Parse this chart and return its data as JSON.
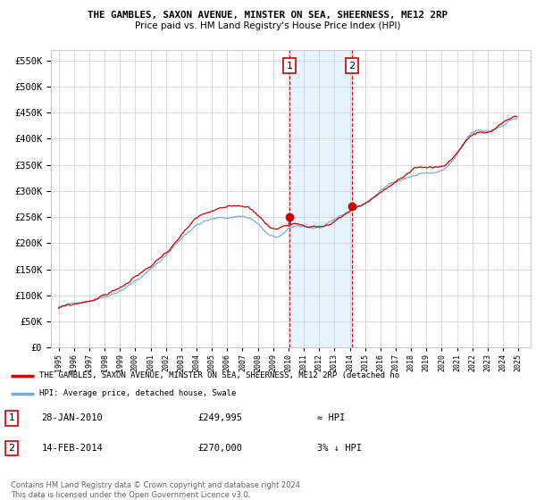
{
  "title": "THE GAMBLES, SAXON AVENUE, MINSTER ON SEA, SHEERNESS, ME12 2RP",
  "subtitle": "Price paid vs. HM Land Registry's House Price Index (HPI)",
  "legend_line1": "THE GAMBLES, SAXON AVENUE, MINSTER ON SEA, SHEERNESS, ME12 2RP (detached ho",
  "legend_line2": "HPI: Average price, detached house, Swale",
  "annotation1": "28-JAN-2010",
  "annotation1_price": "£249,995",
  "annotation1_hpi": "≈ HPI",
  "annotation2": "14-FEB-2014",
  "annotation2_price": "£270,000",
  "annotation2_hpi": "3% ↓ HPI",
  "footnote": "Contains HM Land Registry data © Crown copyright and database right 2024.\nThis data is licensed under the Open Government Licence v3.0.",
  "red_color": "#cc0000",
  "blue_color": "#7aadd4",
  "shade_color": "#ddeeff",
  "vline1_date": 2010.077,
  "vline2_date": 2014.12,
  "ylim_min": 0,
  "ylim_max": 570000,
  "xlim_min": 1994.5,
  "xlim_max": 2025.8
}
